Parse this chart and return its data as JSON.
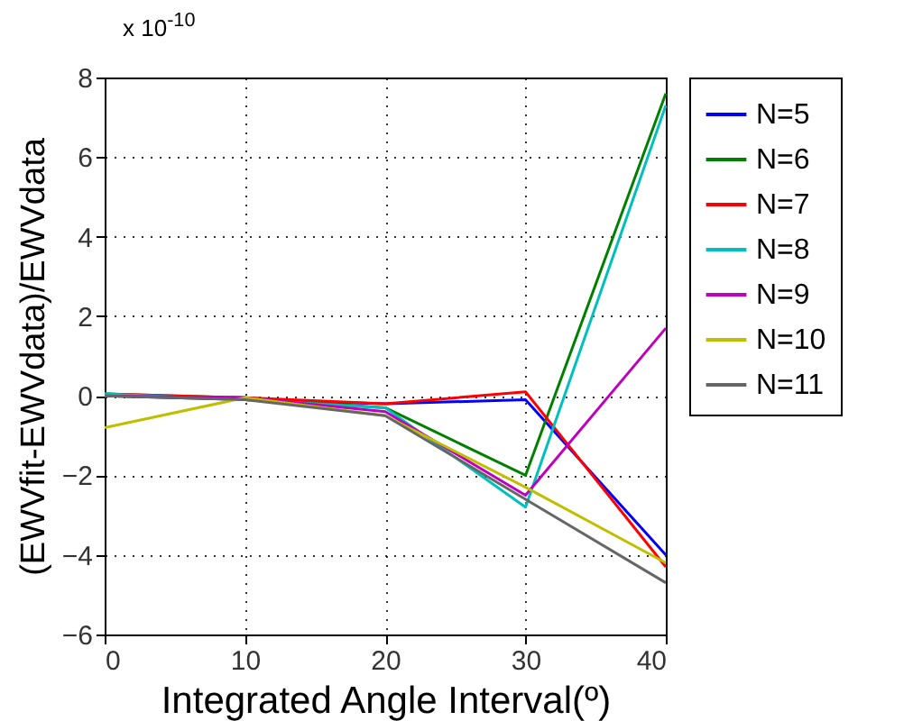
{
  "chart_data": {
    "type": "line",
    "xlabel": "Integrated Angle Interval(º)",
    "ylabel": "(EWVfit-EWVdata)/EWVdata",
    "annotations": [
      "x 10$^{-10}$"
    ],
    "x": [
      0,
      10,
      20,
      30,
      40
    ],
    "series": [
      {
        "name": "N=5",
        "color": "#0000ff",
        "values": [
          0,
          -0.1,
          -0.2,
          -0.1,
          -4.0
        ]
      },
      {
        "name": "N=6",
        "color": "#008000",
        "values": [
          0.05,
          -0.05,
          -0.3,
          -2.0,
          7.6
        ]
      },
      {
        "name": "N=7",
        "color": "#ff0000",
        "values": [
          0.05,
          -0.05,
          -0.2,
          0.1,
          -4.3
        ]
      },
      {
        "name": "N=8",
        "color": "#00bfbf",
        "values": [
          0.05,
          -0.1,
          -0.3,
          -2.8,
          7.3
        ]
      },
      {
        "name": "N=9",
        "color": "#bf00bf",
        "values": [
          0,
          -0.05,
          -0.4,
          -2.5,
          1.7
        ]
      },
      {
        "name": "N=10",
        "color": "#bfbf00",
        "values": [
          -0.8,
          -0.05,
          -0.5,
          -2.3,
          -4.2
        ]
      },
      {
        "name": "N=11",
        "color": "#666666",
        "values": [
          0,
          -0.1,
          -0.5,
          -2.6,
          -4.7
        ]
      }
    ],
    "xlim": [
      0,
      40
    ],
    "xticks": [
      0,
      10,
      20,
      30,
      40
    ],
    "ylim": [
      -6,
      8
    ],
    "yticks": [
      -6,
      -4,
      -2,
      0,
      2,
      4,
      6,
      8
    ],
    "grid": true,
    "legend": "right",
    "marker": "none",
    "line_style": "solid"
  }
}
